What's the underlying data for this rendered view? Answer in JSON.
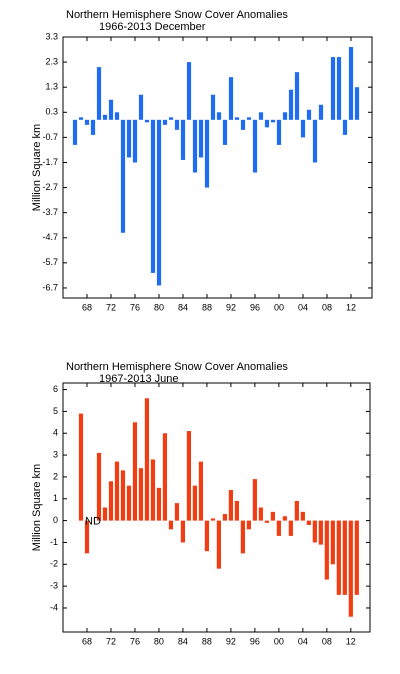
{
  "chart_data": [
    {
      "type": "bar",
      "title": "Northern Hemisphere Snow Cover Anomalies",
      "subtitle": "1966-2013 December",
      "y_label": "Million Square km",
      "color": "#1f6cf0",
      "x": [
        1966,
        1967,
        1968,
        1969,
        1970,
        1971,
        1972,
        1973,
        1974,
        1975,
        1976,
        1977,
        1978,
        1979,
        1980,
        1981,
        1982,
        1983,
        1984,
        1985,
        1986,
        1987,
        1988,
        1989,
        1990,
        1991,
        1992,
        1993,
        1994,
        1995,
        1996,
        1997,
        1998,
        1999,
        2000,
        2001,
        2002,
        2003,
        2004,
        2005,
        2006,
        2007,
        2008,
        2009,
        2010,
        2011,
        2012,
        2013
      ],
      "values": [
        -1.0,
        0.1,
        -0.2,
        -0.6,
        2.1,
        0.2,
        0.8,
        0.3,
        -4.5,
        -1.5,
        -1.7,
        1.0,
        -0.1,
        -6.1,
        -6.6,
        -0.2,
        0.1,
        -0.4,
        -1.6,
        2.3,
        -2.1,
        -1.5,
        -2.7,
        1.0,
        0.3,
        -1.0,
        1.7,
        0.1,
        -0.4,
        0.1,
        -2.1,
        0.3,
        -0.3,
        -0.1,
        -1.0,
        0.3,
        1.2,
        1.9,
        -0.7,
        0.4,
        -1.7,
        0.6,
        0.0,
        2.5,
        2.5,
        -0.6,
        2.9,
        1.3
      ],
      "xlim": [
        1964,
        2015.5
      ],
      "ylim": [
        -7.1,
        3.3
      ],
      "yticks": [
        3.3,
        2.3,
        1.3,
        0.3,
        -0.7,
        -1.7,
        -2.7,
        -3.7,
        -4.7,
        -5.7,
        -6.7
      ],
      "xticks": [
        {
          "value": 1968,
          "label": "68"
        },
        {
          "value": 1972,
          "label": "72"
        },
        {
          "value": 1976,
          "label": "76"
        },
        {
          "value": 1980,
          "label": "80"
        },
        {
          "value": 1984,
          "label": "84"
        },
        {
          "value": 1988,
          "label": "88"
        },
        {
          "value": 1992,
          "label": "92"
        },
        {
          "value": 1996,
          "label": "96"
        },
        {
          "value": 2000,
          "label": "00"
        },
        {
          "value": 2004,
          "label": "04"
        },
        {
          "value": 2008,
          "label": "08"
        },
        {
          "value": 2012,
          "label": "12"
        }
      ]
    },
    {
      "type": "bar",
      "title": "Northern Hemisphere Snow Cover Anomalies",
      "subtitle": "1967-2013 June",
      "y_label": "Million Square km",
      "color": "#f23c12",
      "x": [
        1967,
        1968,
        1969,
        1970,
        1971,
        1972,
        1973,
        1974,
        1975,
        1976,
        1977,
        1978,
        1979,
        1980,
        1981,
        1982,
        1983,
        1984,
        1985,
        1986,
        1987,
        1988,
        1989,
        1990,
        1991,
        1992,
        1993,
        1994,
        1995,
        1996,
        1997,
        1998,
        1999,
        2000,
        2001,
        2002,
        2003,
        2004,
        2005,
        2006,
        2007,
        2008,
        2009,
        2010,
        2011,
        2012,
        2013
      ],
      "values": [
        4.9,
        -1.5,
        null,
        3.1,
        0.6,
        1.8,
        2.7,
        2.3,
        1.6,
        4.5,
        2.4,
        5.6,
        2.8,
        1.5,
        4.0,
        -0.4,
        0.8,
        -1.0,
        4.1,
        1.6,
        2.7,
        -1.4,
        0.1,
        -2.2,
        0.3,
        1.4,
        0.9,
        -1.5,
        -0.4,
        1.9,
        0.6,
        -0.1,
        0.4,
        -0.7,
        0.2,
        -0.7,
        0.9,
        0.4,
        -0.2,
        -1.0,
        -1.1,
        -2.7,
        -2.0,
        -3.4,
        -3.4,
        -4.4,
        -3.4
      ],
      "annotations": [
        {
          "text": "ND",
          "x": 1969
        }
      ],
      "xlim": [
        1964,
        2015.2
      ],
      "ylim": [
        -5.1,
        6.3
      ],
      "yticks": [
        6,
        5,
        4,
        3,
        2,
        1,
        0,
        -1,
        -2,
        -3,
        -4
      ],
      "xticks": [
        {
          "value": 1968,
          "label": "68"
        },
        {
          "value": 1972,
          "label": "72"
        },
        {
          "value": 1976,
          "label": "76"
        },
        {
          "value": 1980,
          "label": "80"
        },
        {
          "value": 1984,
          "label": "84"
        },
        {
          "value": 1988,
          "label": "88"
        },
        {
          "value": 1992,
          "label": "92"
        },
        {
          "value": 1996,
          "label": "96"
        },
        {
          "value": 2000,
          "label": "00"
        },
        {
          "value": 2004,
          "label": "04"
        },
        {
          "value": 2008,
          "label": "08"
        },
        {
          "value": 2012,
          "label": "12"
        }
      ]
    }
  ]
}
